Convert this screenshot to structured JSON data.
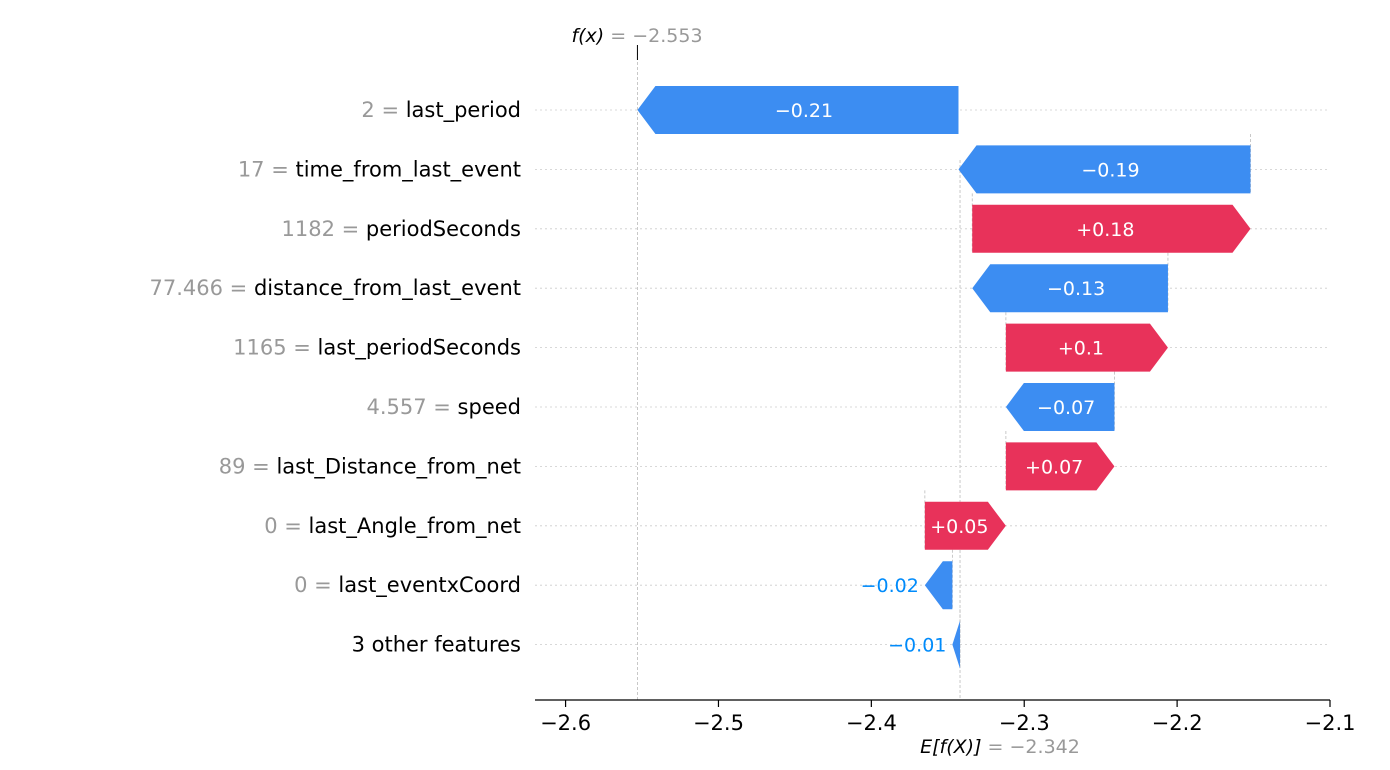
{
  "chart_data": {
    "type": "waterfall",
    "fx_label": {
      "prefix": "f(x)",
      "eq": " = ",
      "value": "−2.553"
    },
    "efx_label": {
      "prefix": "E[f(X)]",
      "eq": " = ",
      "value": "−2.342"
    },
    "fx": -2.553,
    "base_value": -2.342,
    "xlim": [
      -2.62,
      -2.1
    ],
    "xticks": [
      -2.6,
      -2.5,
      -2.4,
      -2.3,
      -2.2,
      -2.1
    ],
    "xtick_labels": [
      "−2.6",
      "−2.5",
      "−2.4",
      "−2.3",
      "−2.2",
      "−2.1"
    ],
    "features": [
      {
        "value": "2",
        "name": "last_period",
        "start": -2.343,
        "end": -2.553,
        "contribution": "−0.21"
      },
      {
        "value": "17",
        "name": "time_from_last_event",
        "start": -2.152,
        "end": -2.343,
        "contribution": "−0.19"
      },
      {
        "value": "1182",
        "name": "periodSeconds",
        "start": -2.334,
        "end": -2.152,
        "contribution": "+0.18"
      },
      {
        "value": "77.466",
        "name": "distance_from_last_event",
        "start": -2.206,
        "end": -2.334,
        "contribution": "−0.13"
      },
      {
        "value": "1165",
        "name": "last_periodSeconds",
        "start": -2.312,
        "end": -2.206,
        "contribution": "+0.1"
      },
      {
        "value": "4.557",
        "name": "speed",
        "start": -2.241,
        "end": -2.312,
        "contribution": "−0.07"
      },
      {
        "value": "89",
        "name": "last_Distance_from_net",
        "start": -2.312,
        "end": -2.241,
        "contribution": "+0.07"
      },
      {
        "value": "0",
        "name": "last_Angle_from_net",
        "start": -2.365,
        "end": -2.312,
        "contribution": "+0.05"
      },
      {
        "value": "0",
        "name": "last_eventxCoord",
        "start": -2.347,
        "end": -2.365,
        "contribution": "−0.02"
      },
      {
        "value": "",
        "name": "3 other features",
        "start": -2.342,
        "end": -2.347,
        "contribution": "−0.01"
      }
    ],
    "colors": {
      "positive": "#ff0051",
      "negative": "#008bfb",
      "positive_bar": "#e8325a",
      "negative_bar": "#3c8df2"
    }
  }
}
